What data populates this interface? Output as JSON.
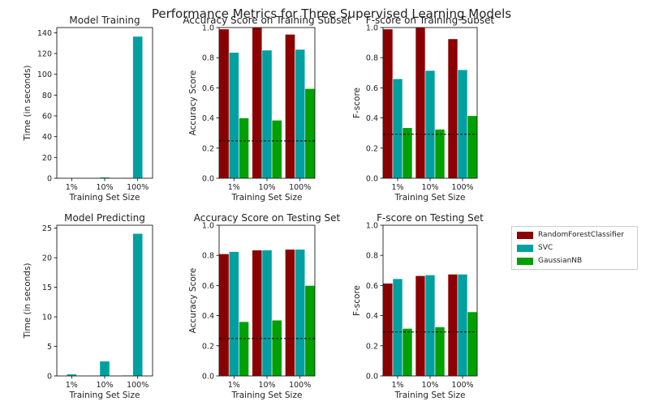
{
  "title": "Performance Metrics for Three Supervised Learning Models",
  "legend": {
    "items": [
      {
        "name": "RandomForestClassifier",
        "color": "#8b0000"
      },
      {
        "name": "SVC",
        "color": "#00a0a0"
      },
      {
        "name": "GaussianNB",
        "color": "#00a000"
      }
    ]
  },
  "chart_data": [
    {
      "type": "bar",
      "title": "Model Training",
      "xlabel": "Training Set Size",
      "ylabel": "Time (in seconds)",
      "categories": [
        "1%",
        "10%",
        "100%"
      ],
      "ylim": [
        0,
        145
      ],
      "yticks": [
        0,
        20,
        40,
        60,
        80,
        100,
        120,
        140
      ],
      "series": [
        {
          "name": "RandomForestClassifier",
          "values": [
            0.05,
            0.1,
            0.5
          ]
        },
        {
          "name": "SVC",
          "values": [
            0.02,
            1.0,
            136.5
          ]
        },
        {
          "name": "GaussianNB",
          "values": [
            0.01,
            0.02,
            0.1
          ]
        }
      ]
    },
    {
      "type": "bar",
      "title": "Accuracy Score on Training Subset",
      "xlabel": "Training Set Size",
      "ylabel": "Accuracy Score",
      "categories": [
        "1%",
        "10%",
        "100%"
      ],
      "ylim": [
        0,
        1.0
      ],
      "yticks": [
        0.0,
        0.2,
        0.4,
        0.6,
        0.8,
        1.0
      ],
      "baseline": 0.248,
      "series": [
        {
          "name": "RandomForestClassifier",
          "values": [
            0.99,
            1.0,
            0.955
          ]
        },
        {
          "name": "SVC",
          "values": [
            0.835,
            0.85,
            0.855
          ]
        },
        {
          "name": "GaussianNB",
          "values": [
            0.4,
            0.385,
            0.595
          ]
        }
      ]
    },
    {
      "type": "bar",
      "title": "F-score on Training Subset",
      "xlabel": "Training Set Size",
      "ylabel": "F-score",
      "categories": [
        "1%",
        "10%",
        "100%"
      ],
      "ylim": [
        0,
        1.0
      ],
      "yticks": [
        0.0,
        0.2,
        0.4,
        0.6,
        0.8,
        1.0
      ],
      "baseline": 0.292,
      "series": [
        {
          "name": "RandomForestClassifier",
          "values": [
            0.99,
            1.0,
            0.925
          ]
        },
        {
          "name": "SVC",
          "values": [
            0.66,
            0.715,
            0.72
          ]
        },
        {
          "name": "GaussianNB",
          "values": [
            0.335,
            0.325,
            0.415
          ]
        }
      ]
    },
    {
      "type": "bar",
      "title": "Model Predicting",
      "xlabel": "Training Set Size",
      "ylabel": "Time (in seconds)",
      "categories": [
        "1%",
        "10%",
        "100%"
      ],
      "ylim": [
        0,
        25.5
      ],
      "yticks": [
        0,
        5,
        10,
        15,
        20,
        25
      ],
      "series": [
        {
          "name": "RandomForestClassifier",
          "values": [
            0.05,
            0.1,
            0.12
          ]
        },
        {
          "name": "SVC",
          "values": [
            0.3,
            2.5,
            24.1
          ]
        },
        {
          "name": "GaussianNB",
          "values": [
            0.02,
            0.03,
            0.06
          ]
        }
      ]
    },
    {
      "type": "bar",
      "title": "Accuracy Score on Testing Set",
      "xlabel": "Training Set Size",
      "ylabel": "Accuracy Score",
      "categories": [
        "1%",
        "10%",
        "100%"
      ],
      "ylim": [
        0,
        1.0
      ],
      "yticks": [
        0.0,
        0.2,
        0.4,
        0.6,
        0.8,
        1.0
      ],
      "baseline": 0.248,
      "series": [
        {
          "name": "RandomForestClassifier",
          "values": [
            0.81,
            0.835,
            0.84
          ]
        },
        {
          "name": "SVC",
          "values": [
            0.825,
            0.835,
            0.84
          ]
        },
        {
          "name": "GaussianNB",
          "values": [
            0.36,
            0.37,
            0.6
          ]
        }
      ]
    },
    {
      "type": "bar",
      "title": "F-score on Testing Set",
      "xlabel": "Training Set Size",
      "ylabel": "F-score",
      "categories": [
        "1%",
        "10%",
        "100%"
      ],
      "ylim": [
        0,
        1.0
      ],
      "yticks": [
        0.0,
        0.2,
        0.4,
        0.6,
        0.8,
        1.0
      ],
      "baseline": 0.292,
      "series": [
        {
          "name": "RandomForestClassifier",
          "values": [
            0.615,
            0.665,
            0.675
          ]
        },
        {
          "name": "SVC",
          "values": [
            0.645,
            0.67,
            0.675
          ]
        },
        {
          "name": "GaussianNB",
          "values": [
            0.315,
            0.325,
            0.425
          ]
        }
      ]
    }
  ]
}
